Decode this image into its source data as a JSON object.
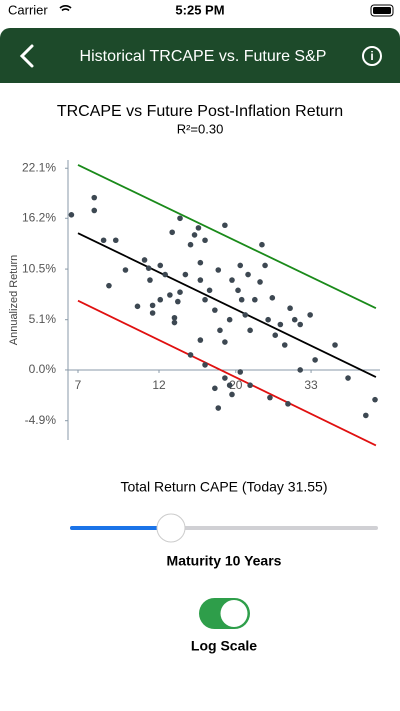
{
  "status_bar": {
    "carrier": "Carrier",
    "time": "5:25 PM"
  },
  "nav": {
    "title": "Historical TRCAPE vs. Future S&P"
  },
  "chart_data": {
    "type": "scatter",
    "title": "TRCAPE vs Future Post-Inflation Return",
    "subtitle": "R²=0.30",
    "ylabel": "Annualized Return",
    "xlabel": "Total Return CAPE (Today 31.55)",
    "x_scale": "log",
    "y_scale": "log_return",
    "xlim": [
      6.55,
      52.2
    ],
    "ylim": [
      -6.7,
      23.1
    ],
    "xticks": [
      7,
      12,
      20,
      33
    ],
    "yticks": [
      {
        "value": -4.9,
        "label": "-4.9%"
      },
      {
        "value": 0.0,
        "label": "0.0%"
      },
      {
        "value": 5.1,
        "label": "5.1%"
      },
      {
        "value": 10.5,
        "label": "10.5%"
      },
      {
        "value": 16.2,
        "label": "16.2%"
      },
      {
        "value": 22.1,
        "label": "22.1%"
      }
    ],
    "points": {
      "color": "#3d4852",
      "x": [
        6.7,
        7.8,
        7.8,
        8.3,
        9.0,
        8.6,
        10.4,
        10.9,
        11.2,
        11.3,
        11.5,
        11.5,
        12.1,
        12.5,
        12.9,
        13.1,
        13.3,
        13.3,
        13.6,
        13.8,
        13.8,
        14.8,
        15.2,
        15.6,
        15.8,
        15.8,
        16.3,
        16.3,
        16.8,
        17.4,
        17.8,
        18.0,
        18.6,
        18.6,
        19.2,
        19.5,
        20.3,
        20.6,
        20.8,
        21.3,
        21.7,
        22.0,
        22.7,
        23.5,
        23.8,
        24.3,
        24.8,
        25.5,
        26.0,
        26.9,
        27.7,
        28.7,
        29.6,
        30.7,
        32.8,
        33.9,
        38.7,
        42.2,
        47.5,
        50.5,
        14.8,
        17.4,
        17.8,
        18.6,
        19.5,
        20.6,
        22.0,
        25.1,
        28.3,
        30.7,
        19.2,
        16.3,
        15.8,
        12.1,
        9.6,
        14.3
      ],
      "values": [
        16.6,
        18.6,
        17.1,
        13.7,
        13.7,
        8.7,
        6.5,
        11.5,
        10.6,
        9.3,
        6.6,
        5.8,
        10.9,
        9.9,
        7.7,
        14.6,
        5.3,
        4.8,
        7.0,
        8.0,
        16.2,
        13.2,
        14.3,
        15.1,
        11.2,
        9.3,
        13.7,
        7.2,
        8.2,
        6.1,
        10.4,
        4.0,
        15.4,
        2.8,
        5.1,
        9.3,
        8.2,
        10.9,
        7.2,
        5.6,
        9.9,
        4.0,
        7.2,
        9.1,
        13.2,
        10.9,
        5.1,
        7.4,
        3.5,
        4.6,
        2.5,
        6.3,
        5.1,
        4.6,
        5.6,
        1.0,
        2.5,
        -0.8,
        -4.4,
        -2.9,
        1.5,
        -1.8,
        -3.7,
        -0.8,
        -2.4,
        -0.2,
        -1.5,
        -2.7,
        -3.3,
        0.0,
        -1.5,
        0.5,
        3.0,
        7.2,
        10.4,
        9.9
      ]
    },
    "fit_lines": [
      {
        "color": "#1a8a1a",
        "x": [
          7.0,
          50.8
        ],
        "values": [
          22.5,
          6.3
        ]
      },
      {
        "color": "#000000",
        "x": [
          7.0,
          50.8
        ],
        "values": [
          14.5,
          -0.7
        ]
      },
      {
        "color": "#e01010",
        "x": [
          7.0,
          50.8
        ],
        "values": [
          7.1,
          -7.2
        ]
      }
    ]
  },
  "controls": {
    "slider_label": "Maturity 10 Years",
    "toggle_label": "Log Scale"
  }
}
